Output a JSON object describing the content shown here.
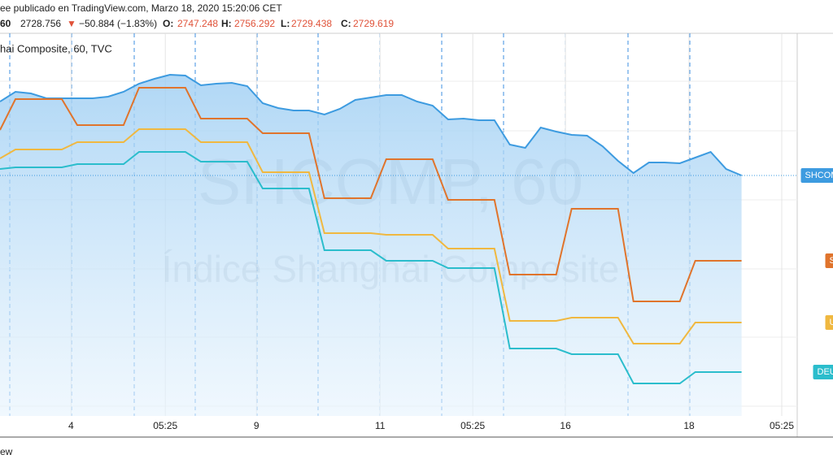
{
  "header": {
    "publisher": "ee publicado en TradingView.com, Marzo 18, 2020 15:20:06 CET",
    "interval": "60",
    "price": "2728.756",
    "arrow": "▼",
    "change": "−50.884 (−1.83%)",
    "o_label": "O:",
    "o": "2747.248",
    "h_label": "H:",
    "h": "2756.292",
    "l_label": "L:",
    "l": "2729.438",
    "c_label": "C:",
    "c": "2729.619",
    "legend": "hai Composite, 60, TVC",
    "footer": "ew"
  },
  "chart_data": {
    "type": "line",
    "watermark": [
      "SHCOMP, 60",
      "Índice Shanghai Composite"
    ],
    "x": [
      0,
      1,
      2,
      3,
      4,
      5,
      6,
      7,
      8,
      9,
      10,
      11,
      12,
      13,
      14,
      15,
      16,
      17,
      18,
      19,
      20,
      21,
      22,
      23,
      24,
      25,
      26,
      27,
      28,
      29,
      30,
      31,
      32,
      33,
      34,
      35,
      36,
      37,
      38,
      39,
      40,
      41,
      42,
      43,
      44,
      45,
      46,
      47,
      48
    ],
    "xlim": [
      0,
      51.6
    ],
    "ylim": [
      1932.5,
      3170
    ],
    "xticks": [
      {
        "value": 4.6,
        "label": "4"
      },
      {
        "value": 10.7,
        "label": "05:25"
      },
      {
        "value": 16.6,
        "label": "9"
      },
      {
        "value": 24.6,
        "label": "11"
      },
      {
        "value": 30.6,
        "label": "05:25"
      },
      {
        "value": 36.6,
        "label": "16"
      },
      {
        "value": 44.6,
        "label": "18"
      },
      {
        "value": 50.6,
        "label": "05:25"
      }
    ],
    "series": [
      {
        "name": "SHCOM",
        "color": "#3d9be0",
        "area": true,
        "values": [
          2957.5,
          2987.5,
          2982.5,
          2967.5,
          2967.5,
          2967.5,
          2967.5,
          2972.5,
          2987.5,
          3012.5,
          3027.5,
          3040,
          3037.5,
          3007.5,
          3012.5,
          3015,
          3005,
          2952.5,
          2937.5,
          2930,
          2930,
          2917.5,
          2935,
          2962.5,
          2970,
          2977.5,
          2977.5,
          2957.5,
          2945,
          2902.5,
          2905,
          2900,
          2900,
          2825,
          2815,
          2877.5,
          2865,
          2855,
          2852.5,
          2820,
          2775,
          2737.5,
          2770,
          2770,
          2767.5,
          2785,
          2802.5,
          2750,
          2730
        ]
      },
      {
        "name": "S",
        "color": "#e0742c",
        "values": [
          2870,
          2965,
          2965,
          2965,
          2965,
          2885,
          2885,
          2885,
          2885,
          3000,
          3000,
          3000,
          3000,
          2905,
          2905,
          2905,
          2905,
          2860,
          2860,
          2860,
          2860,
          2660,
          2660,
          2660,
          2660,
          2780,
          2780,
          2780,
          2780,
          2655,
          2655,
          2655,
          2655,
          2425,
          2425,
          2425,
          2425,
          2627.5,
          2627.5,
          2627.5,
          2627.5,
          2342.5,
          2342.5,
          2342.5,
          2342.5,
          2467.5,
          2467.5,
          2467.5,
          2467.5
        ]
      },
      {
        "name": "U",
        "color": "#f0b840",
        "values": [
          2782.5,
          2810,
          2810,
          2810,
          2810,
          2832.5,
          2832.5,
          2832.5,
          2832.5,
          2872.5,
          2872.5,
          2872.5,
          2872.5,
          2832.5,
          2832.5,
          2832.5,
          2832.5,
          2740,
          2740,
          2740,
          2740,
          2552.5,
          2552.5,
          2552.5,
          2552.5,
          2547.5,
          2547.5,
          2547.5,
          2547.5,
          2505,
          2505,
          2505,
          2505,
          2282.5,
          2282.5,
          2282.5,
          2282.5,
          2292.5,
          2292.5,
          2292.5,
          2292.5,
          2212.5,
          2212.5,
          2212.5,
          2212.5,
          2277.5,
          2277.5,
          2277.5,
          2277.5
        ]
      },
      {
        "name": "DEU",
        "color": "#2bbdcc",
        "values": [
          2750,
          2755,
          2755,
          2755,
          2755,
          2765,
          2765,
          2765,
          2765,
          2802.5,
          2802.5,
          2802.5,
          2802.5,
          2772.5,
          2772.5,
          2772.5,
          2772.5,
          2690,
          2690,
          2690,
          2690,
          2500,
          2500,
          2500,
          2500,
          2467.5,
          2467.5,
          2467.5,
          2467.5,
          2445,
          2445,
          2445,
          2445,
          2197.5,
          2197.5,
          2197.5,
          2197.5,
          2180,
          2180,
          2180,
          2180,
          2090,
          2090,
          2090,
          2090,
          2125,
          2125,
          2125,
          2125
        ]
      }
    ]
  }
}
